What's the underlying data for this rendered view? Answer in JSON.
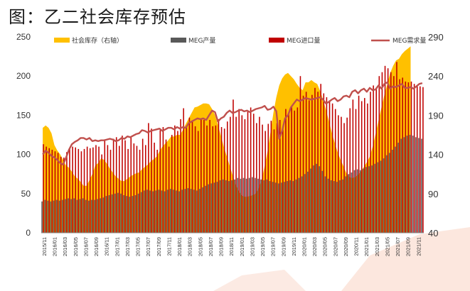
{
  "title": "图：乙二社会库存预估",
  "chart_data": {
    "type": "bar",
    "legend_position": "top",
    "grid": false,
    "y_left": {
      "min": 0,
      "max": 250,
      "ticks": [
        0,
        50,
        100,
        150,
        200,
        250
      ]
    },
    "y_right": {
      "min": 40,
      "max": 290,
      "ticks": [
        40,
        90,
        140,
        190,
        240,
        290
      ]
    },
    "x_tick_labels": [
      "2015/11",
      "2016/01",
      "2016/03",
      "2016/05",
      "2016/07",
      "2016/09",
      "2016/11",
      "2017/01",
      "2017/03",
      "2017/05",
      "2017/07",
      "2017/09",
      "2017/11",
      "2018/01",
      "2018/03",
      "2018/05",
      "2018/07",
      "2018/09",
      "2018/11",
      "2019/01",
      "2019/03",
      "2019/05",
      "2019/07",
      "2019/09",
      "2019/11",
      "2020/01",
      "2020/03",
      "2020/05",
      "2020/07",
      "2020/09",
      "2020/11",
      "2021/01",
      "2021/03",
      "2021/05",
      "2021/07",
      "2021/09",
      "2021/11"
    ],
    "series": [
      {
        "name": "社会库存（右轴）",
        "type": "area",
        "axis": "right",
        "color": "#FFC000",
        "values": [
          174,
          177,
          174,
          167,
          152,
          145,
          140,
          133,
          126,
          123,
          118,
          112,
          109,
          105,
          100,
          100,
          107,
          115,
          126,
          129,
          135,
          133,
          128,
          122,
          117,
          112,
          109,
          106,
          106,
          109,
          112,
          114,
          116,
          117,
          121,
          124,
          127,
          131,
          134,
          137,
          144,
          150,
          154,
          158,
          163,
          163,
          165,
          165,
          171,
          179,
          186,
          193,
          200,
          201,
          203,
          205,
          205,
          204,
          198,
          190,
          178,
          164,
          150,
          138,
          126,
          114,
          102,
          94,
          88,
          86,
          86,
          87,
          88,
          90,
          97,
          108,
          125,
          144,
          168,
          193,
          213,
          228,
          237,
          242,
          244,
          240,
          236,
          230,
          225,
          222,
          232,
          232,
          235,
          232,
          230,
          221,
          210,
          197,
          183,
          168,
          155,
          143,
          133,
          125,
          116,
          111,
          110,
          111,
          114,
          118,
          124,
          130,
          137,
          150,
          166,
          183,
          200,
          216,
          230,
          244,
          253,
          260,
          262,
          268,
          272,
          275,
          278
        ]
      },
      {
        "name": "MEG产量",
        "type": "bar",
        "axis": "left",
        "color": "#595959",
        "values": [
          40,
          42,
          41,
          40,
          41,
          42,
          41,
          42,
          43,
          44,
          43,
          44,
          42,
          43,
          44,
          42,
          41,
          42,
          42,
          43,
          44,
          45,
          47,
          48,
          49,
          50,
          51,
          50,
          48,
          47,
          46,
          47,
          48,
          50,
          52,
          54,
          55,
          54,
          53,
          54,
          55,
          54,
          53,
          55,
          56,
          55,
          54,
          53,
          55,
          56,
          57,
          56,
          55,
          54,
          56,
          58,
          60,
          62,
          63,
          64,
          65,
          67,
          68,
          67,
          66,
          67,
          68,
          70,
          69,
          70,
          69,
          70,
          71,
          70,
          69,
          68,
          67,
          68,
          66,
          65,
          64,
          63,
          64,
          65,
          66,
          67,
          66,
          68,
          70,
          72,
          75,
          78,
          82,
          86,
          88,
          85,
          79,
          72,
          69,
          67,
          66,
          65,
          67,
          68,
          72,
          75,
          77,
          80,
          81,
          80,
          82,
          84,
          85,
          86,
          88,
          90,
          92,
          95,
          99,
          102,
          106,
          110,
          115,
          120,
          122,
          124,
          125,
          124,
          122,
          121,
          120
        ]
      },
      {
        "name": "MEG进口量",
        "type": "bar",
        "axis": "left",
        "color": "#C00000",
        "values": [
          113,
          110,
          108,
          106,
          104,
          102,
          97,
          96,
          103,
          107,
          110,
          109,
          107,
          104,
          107,
          110,
          108,
          109,
          112,
          110,
          100,
          119,
          112,
          106,
          120,
          122,
          111,
          124,
          118,
          107,
          122,
          114,
          111,
          106,
          120,
          112,
          140,
          133,
          115,
          106,
          131,
          135,
          119,
          110,
          125,
          137,
          130,
          145,
          159,
          137,
          147,
          142,
          136,
          130,
          145,
          144,
          137,
          144,
          136,
          137,
          145,
          135,
          133,
          142,
          148,
          170,
          148,
          158,
          150,
          145,
          155,
          160,
          152,
          140,
          148,
          138,
          130,
          139,
          143,
          132,
          140,
          144,
          136,
          158,
          153,
          162,
          156,
          160,
          200,
          175,
          180,
          169,
          176,
          185,
          180,
          190,
          178,
          173,
          169,
          165,
          158,
          150,
          148,
          140,
          147,
          159,
          170,
          158,
          175,
          168,
          172,
          165,
          180,
          188,
          185,
          200,
          205,
          213,
          210,
          205,
          200,
          218,
          196,
          198,
          193,
          192,
          193,
          190,
          188,
          187,
          186
        ]
      },
      {
        "name": "MEG需求量",
        "type": "line",
        "axis": "right",
        "color": "#C0504D",
        "values": [
          140,
          145,
          142,
          138,
          136,
          133,
          129,
          127,
          136,
          146,
          153,
          156,
          158,
          161,
          161,
          159,
          161,
          157,
          158,
          157,
          158,
          158,
          159,
          160,
          159,
          157,
          158,
          161,
          160,
          163,
          162,
          164,
          166,
          167,
          171,
          170,
          168,
          170,
          171,
          172,
          173,
          170,
          172,
          174,
          174,
          172,
          175,
          173,
          175,
          174,
          180,
          182,
          184,
          186,
          185,
          186,
          184,
          190,
          196,
          194,
          182,
          186,
          188,
          193,
          196,
          193,
          194,
          196,
          197,
          195,
          196,
          194,
          196,
          198,
          199,
          200,
          202,
          197,
          198,
          201,
          195,
          160,
          170,
          186,
          190,
          200,
          205,
          210,
          208,
          210,
          212,
          211,
          210,
          211,
          212,
          213,
          210,
          205,
          207,
          210,
          212,
          208,
          210,
          214,
          215,
          213,
          220,
          222,
          218,
          222,
          224,
          220,
          225,
          222,
          223,
          228,
          224,
          230,
          232,
          224,
          227,
          226,
          228,
          230,
          225,
          225,
          226,
          224,
          227,
          230,
          231
        ]
      }
    ]
  }
}
